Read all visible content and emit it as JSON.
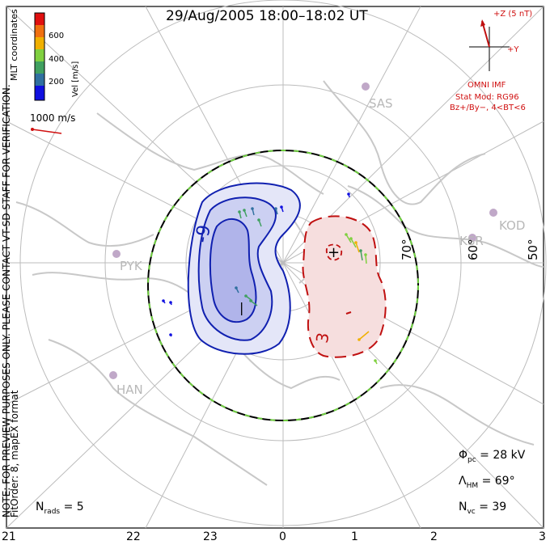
{
  "title": "29/Aug/2005 18:00–18:02 UT",
  "side_note": "NOTE: FOR PREVIEW PURPOSES ONLY. PLEASE CONTACT VT-SD STAFF FOR VERIFICATION.",
  "fit_info": "FitOrder: 8, mapEX format",
  "coords": "MLT coordinates",
  "colorbar": {
    "label": "Vel [m/s]",
    "ticks": [
      "600",
      "400",
      "200"
    ],
    "colors": [
      "#e01010",
      "#f07010",
      "#f0b000",
      "#80d040",
      "#40a060",
      "#3070a0",
      "#1010e0"
    ]
  },
  "vector_scale": "1000 m/s",
  "imf": {
    "z_label": "+Z (5 nT)",
    "y_label": "+Y",
    "source": "OMNI IMF",
    "model1": "Stat Mod: RG96",
    "model2": "Bz+/By−, 4<BT<6"
  },
  "stations": [
    "SAS",
    "KOD",
    "KSR",
    "PYK",
    "HAN"
  ],
  "lat_labels": [
    "70°",
    "60°",
    "50°"
  ],
  "contours": {
    "neg": "-9",
    "pos": "3"
  },
  "stats": {
    "phi_sym": "Φ",
    "phi_sub": "pc",
    "phi_val": "= 28 kV",
    "lam_sym": "Λ",
    "lam_sub": "HM",
    "lam_val": "= 69°",
    "nvc_sym": "N",
    "nvc_sub": "vc",
    "nvc_val": "= 39",
    "nrads_sym": "N",
    "nrads_sub": "rads",
    "nrads_val": "= 5"
  },
  "mlt_labels": [
    "21",
    "22",
    "23",
    "0",
    "1",
    "2",
    "3"
  ],
  "colors": {
    "negative": "#1020b0",
    "positive": "#c01010",
    "coast": "#c8c8c8",
    "grid": "#b8b8b8"
  }
}
